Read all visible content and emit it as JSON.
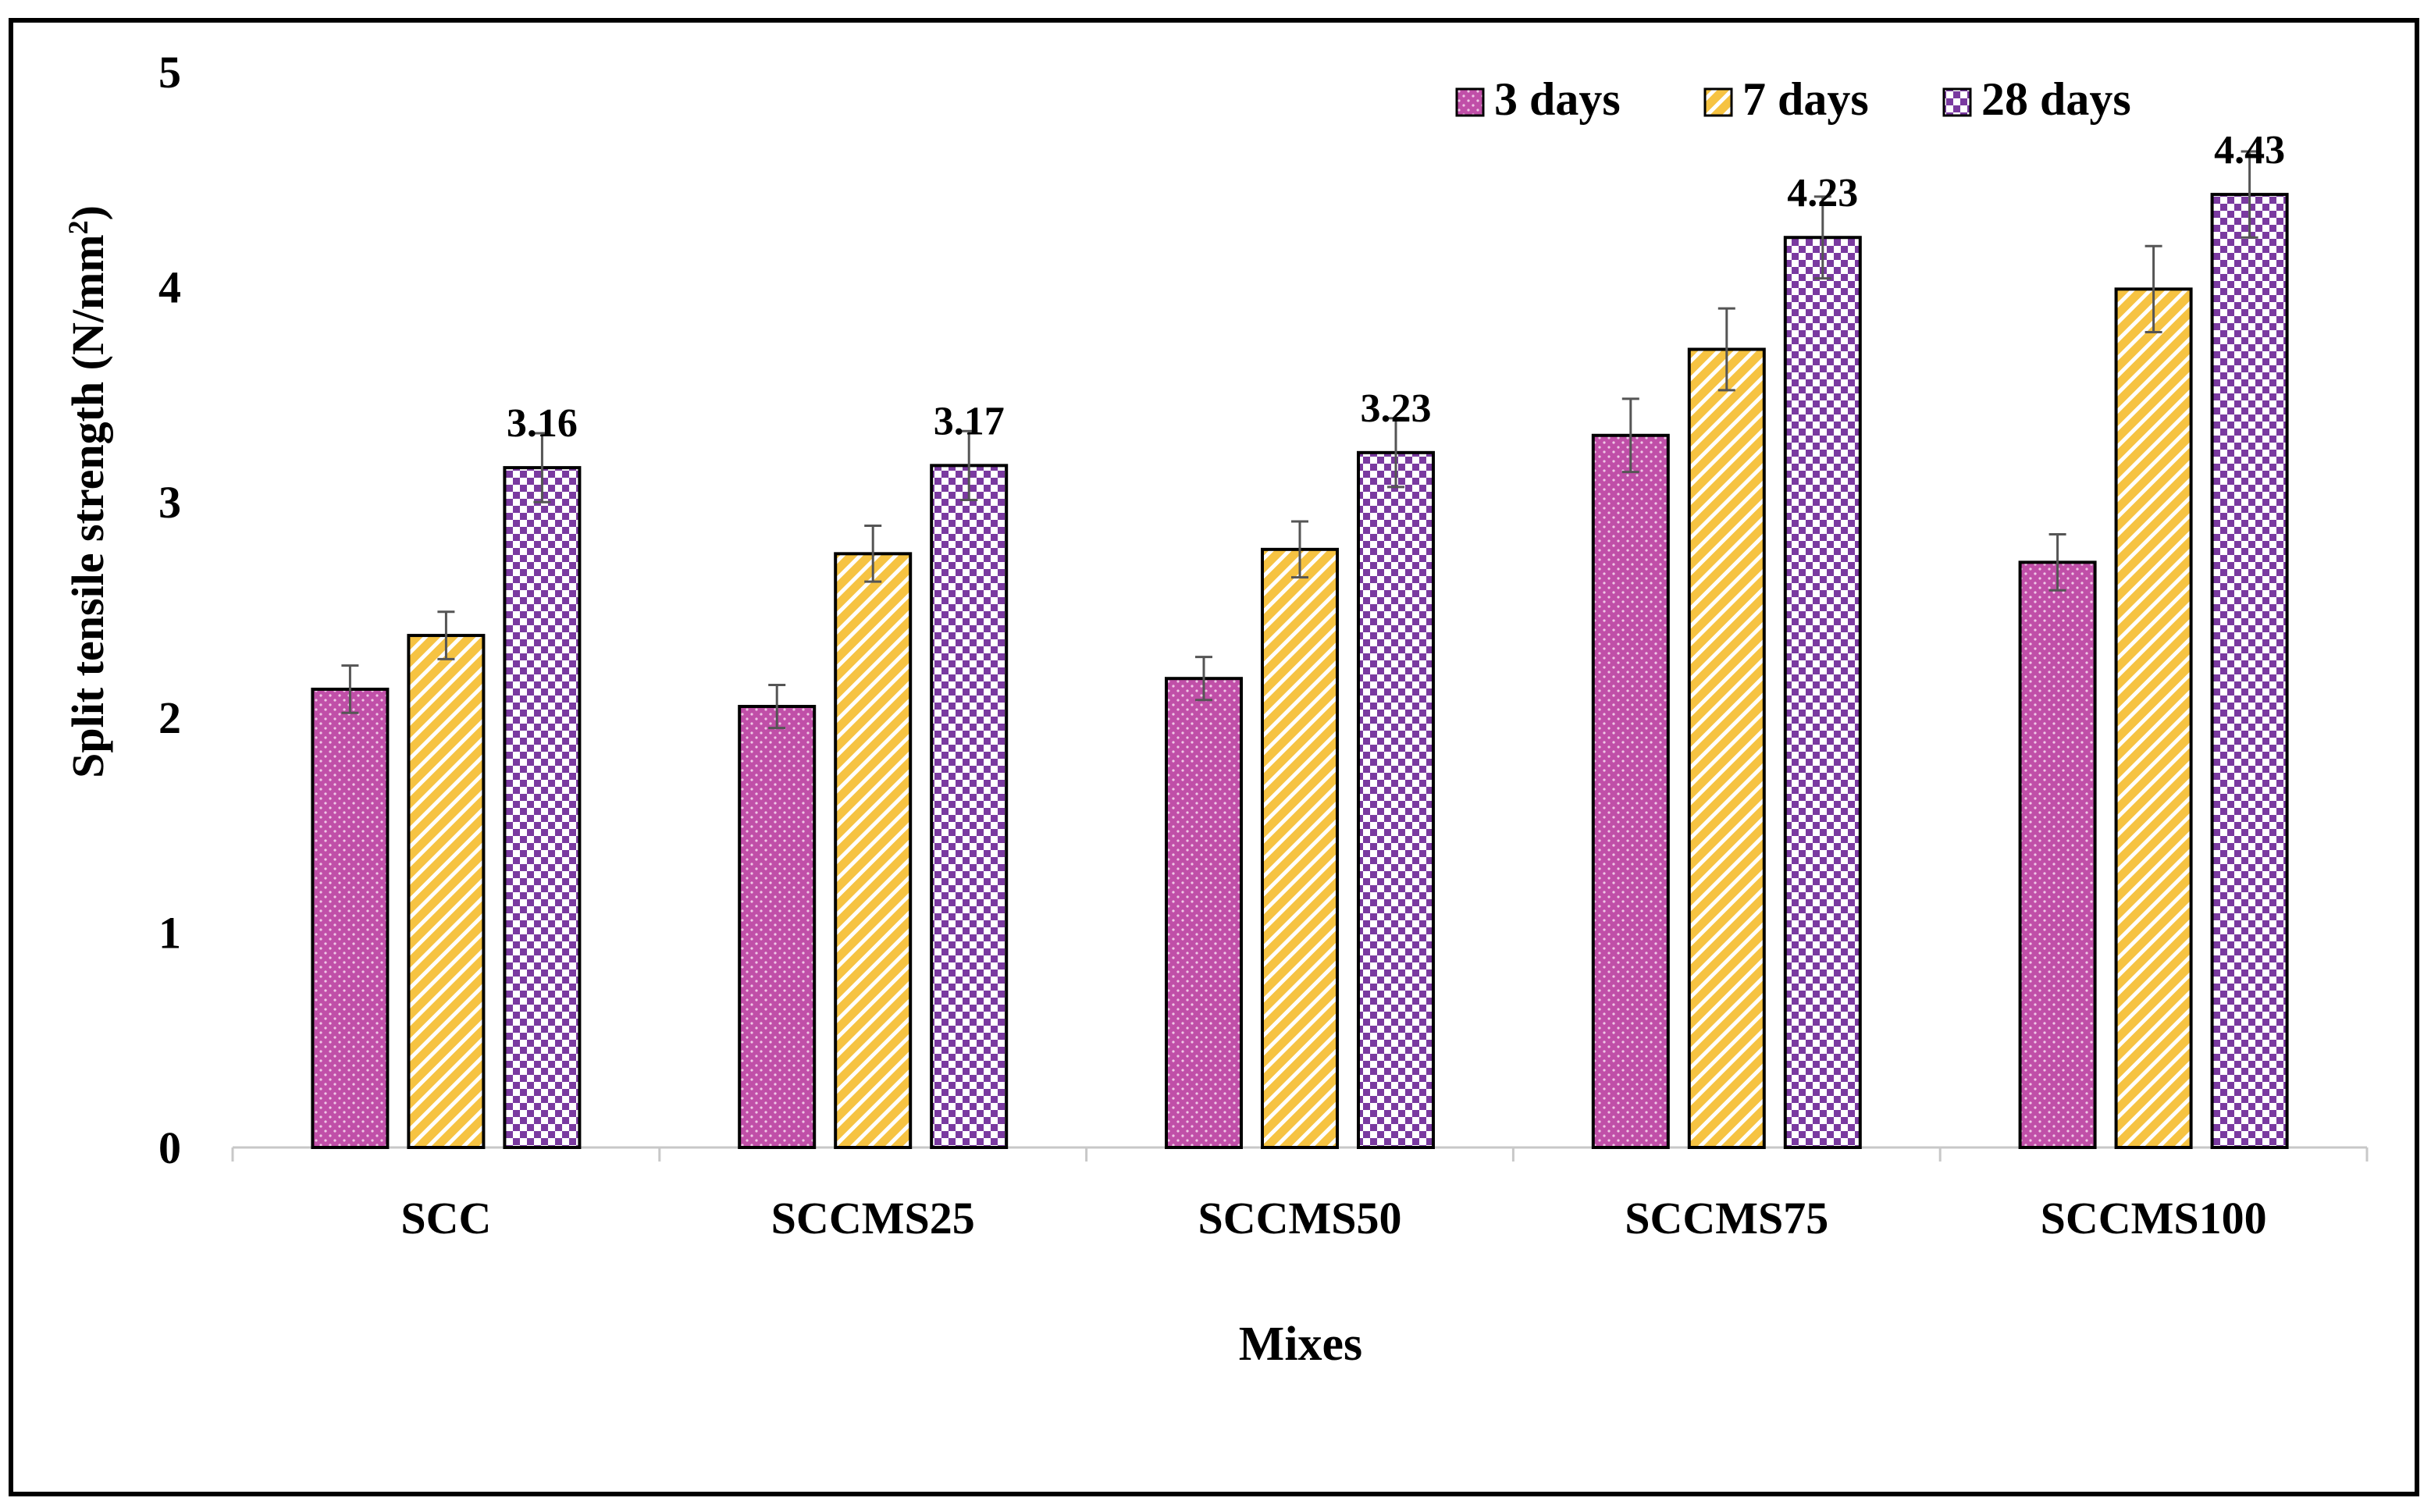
{
  "chart_data": {
    "type": "bar",
    "title": "",
    "xlabel": "Mixes",
    "ylabel": "Split tensile strength (N/mm",
    "ylabel_sup": "2",
    "ylabel_close": ")",
    "ylim": [
      0,
      5
    ],
    "yticks": [
      0,
      1,
      2,
      3,
      4,
      5
    ],
    "categories": [
      "SCC",
      "SCCMS25",
      "SCCMS50",
      "SCCMS75",
      "SCCMS100"
    ],
    "series": [
      {
        "name": "3 days",
        "color": "#c04fa8",
        "dot_color": "#f0c8e6",
        "pattern": "dots",
        "values": [
          2.13,
          2.05,
          2.18,
          3.31,
          2.72
        ],
        "errors": [
          0.11,
          0.1,
          0.1,
          0.17,
          0.13
        ]
      },
      {
        "name": "7 days",
        "color": "#f6c342",
        "stripe_color": "#ffffff",
        "pattern": "diagonal",
        "values": [
          2.38,
          2.76,
          2.78,
          3.71,
          3.99
        ],
        "errors": [
          0.11,
          0.13,
          0.13,
          0.19,
          0.2
        ]
      },
      {
        "name": "28 days",
        "color": "#7a3aa0",
        "check_color": "#ffffff",
        "pattern": "checker",
        "values": [
          3.16,
          3.17,
          3.23,
          4.23,
          4.43
        ],
        "errors": [
          0.16,
          0.16,
          0.16,
          0.19,
          0.2
        ],
        "labels": [
          "3.16",
          "3.17",
          "3.23",
          "4.23",
          "4.43"
        ]
      }
    ],
    "legend_position": "top-right",
    "grid": false
  }
}
